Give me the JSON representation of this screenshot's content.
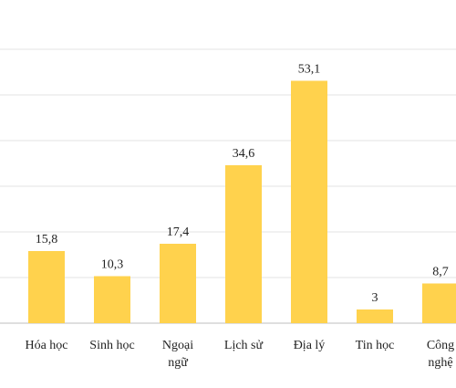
{
  "chart_data": {
    "type": "bar",
    "title": "",
    "xlabel": "",
    "ylabel": "",
    "categories": [
      {
        "lines": [
          "Hóa học"
        ]
      },
      {
        "lines": [
          "Sinh học"
        ]
      },
      {
        "lines": [
          "Ngoại",
          "ngữ"
        ]
      },
      {
        "lines": [
          "Lịch sử"
        ]
      },
      {
        "lines": [
          "Địa lý"
        ]
      },
      {
        "lines": [
          "Tin học"
        ]
      },
      {
        "lines": [
          "Công",
          "nghệ"
        ]
      }
    ],
    "values": [
      15.8,
      10.3,
      17.4,
      34.6,
      53.1,
      3,
      8.7
    ],
    "value_labels": [
      "15,8",
      "10,3",
      "17,4",
      "34,6",
      "53,1",
      "3",
      "8,7"
    ],
    "ylim": [
      0,
      60
    ],
    "gridlines": [
      10,
      20,
      30,
      40,
      50,
      60
    ],
    "grid": true,
    "colors": {
      "bar": "#FFD24D",
      "grid": "#E3E3E3",
      "axis": "#BFBFBF",
      "text": "#222222"
    }
  }
}
